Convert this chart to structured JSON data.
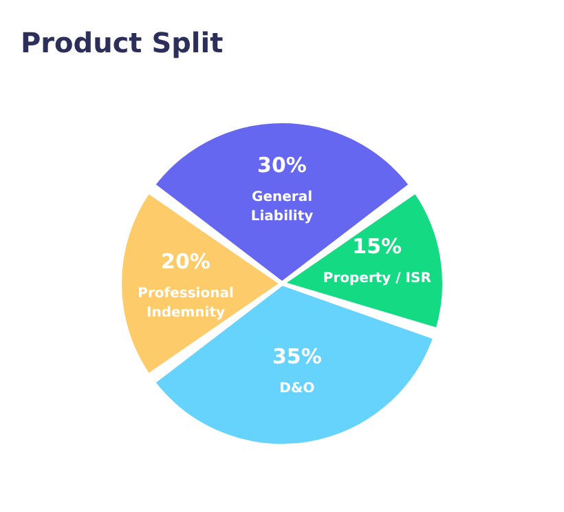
{
  "chart_data": {
    "type": "pie",
    "title": "Product Split",
    "categories": [
      "General Liability",
      "Property / ISR",
      "D&O",
      "Professional Indemnity"
    ],
    "values": [
      30,
      15,
      35,
      20
    ],
    "colors": [
      "#6567f0",
      "#14da84",
      "#66d3fc",
      "#fdcb69"
    ],
    "value_labels": [
      "30%",
      "15%",
      "35%",
      "20%"
    ],
    "legend": false
  }
}
